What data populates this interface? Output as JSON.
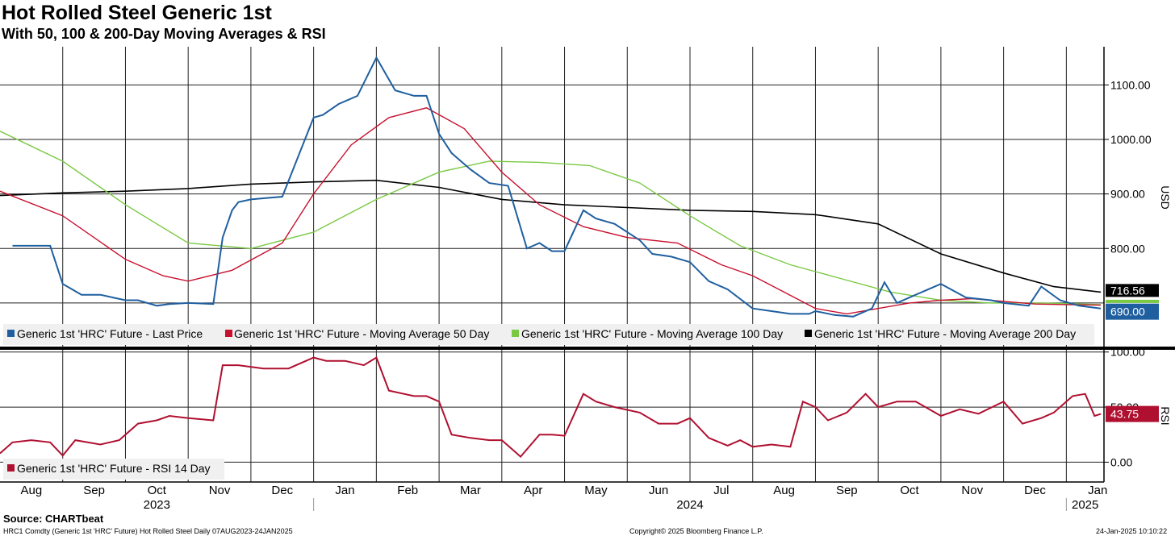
{
  "header": {
    "title": "Hot Rolled Steel Generic 1st",
    "subtitle": "With 50, 100 & 200-Day Moving Averages & RSI"
  },
  "footer": {
    "source": "Source: CHARTbeat",
    "left": "HRC1 Comdty (Generic 1st 'HRC' Future) Hot Rolled Steel  Daily 07AUG2023-24JAN2025",
    "center": "Copyright© 2025 Bloomberg Finance L.P.",
    "right": "24-Jan-2025 10:10:22"
  },
  "colors": {
    "last_price": "#1f5fa0",
    "ma50": "#c8102e",
    "ma100": "#7ac943",
    "ma200": "#000000",
    "rsi": "#b01030"
  },
  "chart_data": [
    {
      "type": "line",
      "title": "Hot Rolled Steel Generic 1st",
      "ylabel": "USD",
      "ylim": [
        620,
        1170
      ],
      "yticks": [
        800,
        900,
        1000,
        1100
      ],
      "ytick_labels": [
        "800.00",
        "900.00",
        "1000.00",
        "1100.00"
      ],
      "xlim": [
        0,
        17.6
      ],
      "x_unit": "months since 1-Aug-2023",
      "series": [
        {
          "name": "Generic 1st 'HRC' Future - Last Price",
          "x": [
            0.2,
            0.6,
            0.8,
            1.0,
            1.15,
            1.3,
            1.6,
            1.8,
            2.0,
            2.2,
            2.5,
            2.7,
            3.0,
            3.4,
            3.55,
            3.7,
            3.8,
            4.0,
            4.2,
            4.5,
            5.0,
            5.15,
            5.4,
            5.7,
            6.0,
            6.3,
            6.6,
            6.8,
            7.0,
            7.2,
            7.3,
            7.5,
            7.8,
            8.1,
            8.4,
            8.6,
            8.8,
            9.0,
            9.3,
            9.5,
            9.8,
            10.2,
            10.4,
            10.7,
            11.0,
            11.3,
            11.6,
            12.0,
            12.3,
            12.6,
            12.9,
            13.0,
            13.3,
            13.6,
            13.9,
            14.1,
            14.3,
            14.5,
            15.0,
            15.4,
            15.8,
            16.0,
            16.4,
            16.6,
            16.9,
            17.2,
            17.55
          ],
          "values": [
            805,
            805,
            805,
            735,
            725,
            715,
            715,
            710,
            705,
            705,
            695,
            698,
            700,
            698,
            820,
            870,
            885,
            890,
            892,
            895,
            1040,
            1045,
            1065,
            1080,
            1150,
            1090,
            1080,
            1080,
            1010,
            975,
            965,
            945,
            920,
            915,
            800,
            810,
            795,
            795,
            870,
            855,
            845,
            815,
            790,
            785,
            775,
            740,
            725,
            690,
            685,
            680,
            680,
            685,
            678,
            675,
            690,
            738,
            700,
            710,
            735,
            710,
            705,
            700,
            695,
            730,
            705,
            695,
            690
          ],
          "last_label": "690.00"
        },
        {
          "name": "Generic 1st 'HRC' Future - Moving Average 50 Day",
          "x": [
            0,
            1.0,
            2.0,
            2.6,
            3.0,
            3.7,
            4.5,
            5.0,
            5.6,
            6.2,
            6.8,
            7.4,
            8.0,
            8.6,
            9.3,
            10.0,
            10.8,
            11.5,
            12.0,
            12.5,
            13.0,
            13.5,
            14.0,
            14.5,
            15.0,
            15.5,
            16.0,
            16.5,
            17.0,
            17.55
          ],
          "values": [
            905,
            860,
            780,
            750,
            740,
            760,
            810,
            900,
            990,
            1040,
            1058,
            1020,
            940,
            880,
            840,
            820,
            810,
            770,
            750,
            720,
            690,
            680,
            690,
            700,
            705,
            708,
            703,
            698,
            697,
            696
          ]
        },
        {
          "name": "Generic 1st 'HRC' Future - Moving Average 100 Day",
          "x": [
            0,
            1.0,
            2.0,
            3.0,
            4.0,
            5.0,
            6.0,
            7.0,
            7.8,
            8.6,
            9.4,
            10.2,
            11.0,
            11.8,
            12.6,
            13.4,
            14.2,
            15.0,
            15.8,
            16.6,
            17.55
          ],
          "values": [
            1015,
            960,
            880,
            810,
            800,
            830,
            890,
            940,
            960,
            958,
            952,
            920,
            860,
            805,
            770,
            745,
            720,
            705,
            700,
            700,
            697
          ]
        },
        {
          "name": "Generic 1st 'HRC' Future - Moving Average 200 Day",
          "x": [
            0,
            1.0,
            2.0,
            3.0,
            4.0,
            5.0,
            6.0,
            7.0,
            8.0,
            9.0,
            10.0,
            11.0,
            12.0,
            13.0,
            14.0,
            15.0,
            16.0,
            16.8,
            17.55
          ],
          "values": [
            897,
            902,
            905,
            910,
            918,
            922,
            925,
            912,
            890,
            880,
            875,
            870,
            868,
            862,
            845,
            790,
            755,
            730,
            720
          ],
          "last_label": "716.56"
        }
      ]
    },
    {
      "type": "line",
      "ylabel": "RSI",
      "ylim": [
        -18,
        102
      ],
      "yticks": [
        0,
        50,
        100
      ],
      "ytick_labels": [
        "0.00",
        "50.00",
        "100.00"
      ],
      "xlim": [
        0,
        17.6
      ],
      "series": [
        {
          "name": "Generic 1st 'HRC' Future - RSI 14 Day",
          "x": [
            0.0,
            0.2,
            0.5,
            0.8,
            1.0,
            1.2,
            1.6,
            1.9,
            2.2,
            2.5,
            2.7,
            3.0,
            3.4,
            3.55,
            3.8,
            4.2,
            4.6,
            5.0,
            5.2,
            5.5,
            5.8,
            6.0,
            6.2,
            6.6,
            6.8,
            7.0,
            7.2,
            7.5,
            7.8,
            8.0,
            8.3,
            8.6,
            8.8,
            9.0,
            9.3,
            9.5,
            9.8,
            10.2,
            10.5,
            10.8,
            11.0,
            11.3,
            11.6,
            11.8,
            12.0,
            12.3,
            12.6,
            12.8,
            13.0,
            13.2,
            13.5,
            13.8,
            14.0,
            14.3,
            14.6,
            15.0,
            15.3,
            15.6,
            16.0,
            16.3,
            16.6,
            16.8,
            17.1,
            17.3,
            17.45,
            17.55
          ],
          "values": [
            8,
            18,
            20,
            18,
            6,
            20,
            16,
            20,
            35,
            38,
            42,
            40,
            38,
            88,
            88,
            85,
            85,
            95,
            92,
            92,
            88,
            95,
            65,
            60,
            60,
            55,
            25,
            22,
            20,
            20,
            5,
            25,
            25,
            24,
            62,
            55,
            50,
            45,
            35,
            35,
            40,
            22,
            15,
            20,
            14,
            16,
            14,
            55,
            50,
            38,
            45,
            62,
            50,
            55,
            55,
            42,
            48,
            44,
            55,
            35,
            40,
            45,
            60,
            62,
            42,
            43.75
          ],
          "last_label": "43.75"
        }
      ]
    }
  ],
  "x_axis": {
    "months": [
      "Aug",
      "Sep",
      "Oct",
      "Nov",
      "Dec",
      "Jan",
      "Feb",
      "Mar",
      "Apr",
      "May",
      "Jun",
      "Jul",
      "Aug",
      "Sep",
      "Oct",
      "Nov",
      "Dec",
      "Jan"
    ],
    "years": [
      "2023",
      "2024",
      "2025"
    ]
  }
}
